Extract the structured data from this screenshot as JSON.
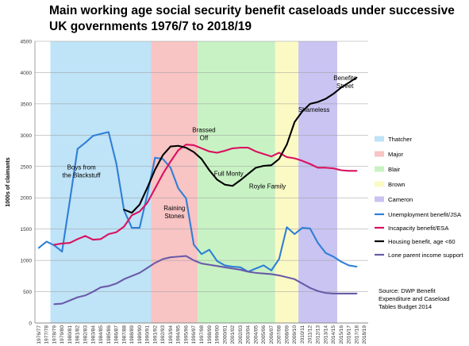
{
  "chart_data": {
    "type": "line",
    "title": "Main working age social security benefit caseloads under successive UK governments 1976/7  to 2018/19",
    "ylabel": "1000s of claimants",
    "ylim": [
      0,
      4500
    ],
    "yticks": [
      0,
      500,
      1000,
      1500,
      2000,
      2500,
      3000,
      3500,
      4000,
      4500
    ],
    "categories": [
      "1976/77",
      "1977/78",
      "1978/79",
      "1979/80",
      "1980/81",
      "1981/82",
      "1982/83",
      "1983/84",
      "1984/85",
      "1985/86",
      "1986/87",
      "1987/88",
      "1988/89",
      "1989/90",
      "1990/91",
      "1991/92",
      "1992/93",
      "1993/94",
      "1994/95",
      "1995/96",
      "1996/97",
      "1997/98",
      "1998/99",
      "1999/00",
      "2000/01",
      "2001/02",
      "2002/03",
      "2003/04",
      "2004/05",
      "2005/06",
      "2006/07",
      "2007/08",
      "2008/09",
      "2009/10",
      "2010/11",
      "2011/12",
      "2012/13",
      "2013/14",
      "2014/15",
      "2015/16",
      "2016/17",
      "2017/18",
      "2018/19"
    ],
    "governments": [
      {
        "name": "Thatcher",
        "start": 2,
        "end": 15,
        "color": "#bfe3f7"
      },
      {
        "name": "Major",
        "start": 15,
        "end": 21,
        "color": "#f8c4c4"
      },
      {
        "name": "Blair",
        "start": 21,
        "end": 31,
        "color": "#c8f2c4"
      },
      {
        "name": "Brown",
        "start": 31,
        "end": 34,
        "color": "#fbfac4"
      },
      {
        "name": "Cameron",
        "start": 34,
        "end": 39,
        "color": "#c9c4f2"
      }
    ],
    "series": [
      {
        "name": "Unemployment benefit/JSA",
        "color": "#2f7fd6",
        "values": [
          1200,
          1300,
          1240,
          1140,
          1950,
          2780,
          2880,
          2990,
          3020,
          3050,
          2550,
          1800,
          1520,
          1520,
          2050,
          2640,
          2620,
          2480,
          2150,
          1990,
          1250,
          1100,
          1170,
          990,
          920,
          900,
          890,
          820,
          870,
          920,
          840,
          1020,
          1530,
          1420,
          1520,
          1510,
          1280,
          1120,
          1060,
          980,
          920,
          900,
          null
        ]
      },
      {
        "name": "Incapacity benefit/ESA",
        "color": "#d9115f",
        "values": [
          null,
          null,
          1250,
          1270,
          1280,
          1340,
          1390,
          1330,
          1340,
          1420,
          1450,
          1540,
          1720,
          1780,
          1920,
          2150,
          2380,
          2580,
          2760,
          2850,
          2840,
          2790,
          2740,
          2720,
          2750,
          2790,
          2800,
          2800,
          2740,
          2700,
          2660,
          2720,
          2650,
          2630,
          2590,
          2540,
          2480,
          2480,
          2470,
          2440,
          2430,
          2430,
          null
        ]
      },
      {
        "name": "Housing benefit, age <60",
        "color": "#000000",
        "values": [
          null,
          null,
          null,
          null,
          null,
          null,
          null,
          null,
          null,
          null,
          null,
          1810,
          1760,
          1890,
          2160,
          2450,
          2680,
          2820,
          2830,
          2800,
          2730,
          2620,
          2440,
          2290,
          2210,
          2190,
          2280,
          2380,
          2480,
          2510,
          2520,
          2620,
          2850,
          3210,
          3380,
          3500,
          3530,
          3580,
          3660,
          3760,
          3840,
          3920,
          null
        ]
      },
      {
        "name": "Lone parent income support",
        "color": "#6a5ba8",
        "values": [
          null,
          null,
          300,
          310,
          360,
          410,
          440,
          500,
          570,
          590,
          630,
          700,
          750,
          800,
          880,
          960,
          1020,
          1050,
          1060,
          1070,
          1000,
          950,
          930,
          910,
          890,
          870,
          850,
          820,
          800,
          790,
          780,
          760,
          730,
          700,
          630,
          560,
          510,
          480,
          470,
          470,
          470,
          470,
          null
        ]
      }
    ],
    "annotations": [
      {
        "text": [
          "Boys from",
          "the Blackstuff"
        ],
        "x": 5.5,
        "y": 2450
      },
      {
        "text": [
          "Raining",
          "Stones"
        ],
        "x": 17.5,
        "y": 1800
      },
      {
        "text": [
          "Brassed",
          "Off"
        ],
        "x": 21.3,
        "y": 3050
      },
      {
        "text": [
          "Full Monty"
        ],
        "x": 24.5,
        "y": 2350
      },
      {
        "text": [
          "Royle Family"
        ],
        "x": 29.5,
        "y": 2150
      },
      {
        "text": [
          "Shameless"
        ],
        "x": 35.5,
        "y": 3370
      },
      {
        "text": [
          "Benefits",
          "Street"
        ],
        "x": 39.5,
        "y": 3880
      }
    ],
    "legend_position": "right",
    "source": [
      "Source: DWP Benefit",
      "Expenditure and Caseload",
      "Tables Budget 2014"
    ],
    "grid": true
  }
}
